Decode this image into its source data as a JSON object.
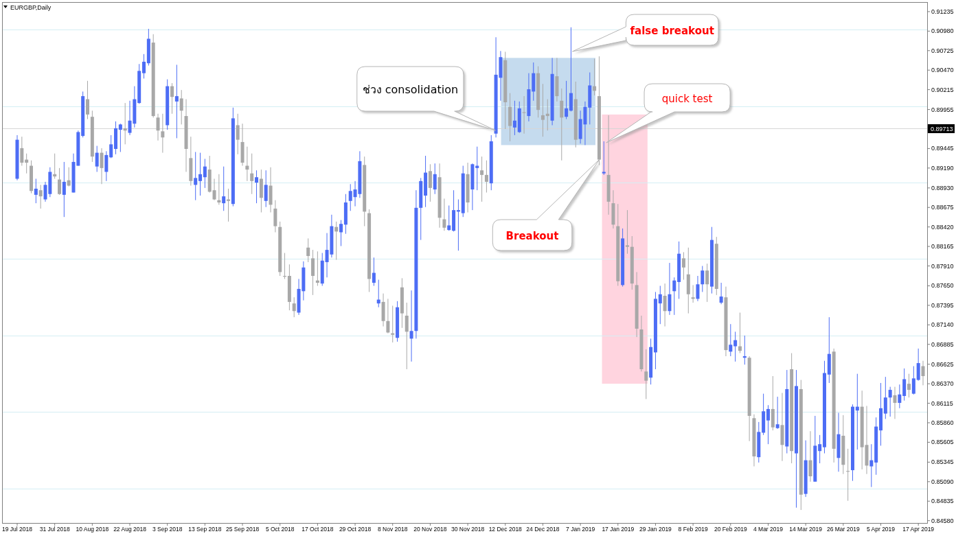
{
  "chart_data": {
    "type": "candlestick",
    "title": "EURGBP,Daily",
    "categories": [
      "19 Jul 2018",
      null,
      null,
      null,
      null,
      null,
      null,
      null,
      "31 Jul 2018",
      null,
      null,
      null,
      null,
      null,
      null,
      null,
      "10 Aug 2018",
      null,
      null,
      null,
      null,
      null,
      null,
      null,
      "22 Aug 2018",
      null,
      null,
      null,
      null,
      null,
      null,
      null,
      "3 Sep 2018",
      null,
      null,
      null,
      null,
      null,
      null,
      null,
      "13 Sep 2018",
      null,
      null,
      null,
      null,
      null,
      null,
      null,
      "25 Sep 2018",
      null,
      null,
      null,
      null,
      null,
      null,
      null,
      "5 Oct 2018",
      null,
      null,
      null,
      null,
      null,
      null,
      null,
      "17 Oct 2018",
      null,
      null,
      null,
      null,
      null,
      null,
      null,
      "29 Oct 2018",
      null,
      null,
      null,
      null,
      null,
      null,
      null,
      "8 Nov 2018",
      null,
      null,
      null,
      null,
      null,
      null,
      null,
      "20 Nov 2018",
      null,
      null,
      null,
      null,
      null,
      null,
      null,
      "30 Nov 2018",
      null,
      null,
      null,
      null,
      null,
      null,
      null,
      "12 Dec 2018",
      null,
      null,
      null,
      null,
      null,
      null,
      null,
      "24 Dec 2018",
      null,
      null,
      null,
      null,
      null,
      null,
      null,
      "7 Jan 2019",
      null,
      null,
      null,
      null,
      null,
      null,
      null,
      "17 Jan 2019",
      null,
      null,
      null,
      null,
      null,
      null,
      null,
      "29 Jan 2019",
      null,
      null,
      null,
      null,
      null,
      null,
      null,
      "8 Feb 2019",
      null,
      null,
      null,
      null,
      null,
      null,
      null,
      "20 Feb 2019",
      null,
      null,
      null,
      null,
      null,
      null,
      null,
      "4 Mar 2019",
      null,
      null,
      null,
      null,
      null,
      null,
      null,
      "14 Mar 2019",
      null,
      null,
      null,
      null,
      null,
      null,
      null,
      "26 Mar 2019",
      null,
      null,
      null,
      null,
      null,
      null,
      null,
      "5 Apr 2019",
      null,
      null,
      null,
      null,
      null,
      null,
      null,
      "17 Apr 2019",
      null
    ],
    "ohlc": [
      [
        0.8905,
        0.8962,
        0.8903,
        0.8956
      ],
      [
        0.8945,
        0.896,
        0.8922,
        0.8926
      ],
      [
        0.893,
        0.8938,
        0.8912,
        0.8926
      ],
      [
        0.8922,
        0.8929,
        0.8886,
        0.8889
      ],
      [
        0.8884,
        0.8905,
        0.8873,
        0.8892
      ],
      [
        0.889,
        0.8897,
        0.8866,
        0.8882
      ],
      [
        0.8878,
        0.8901,
        0.8875,
        0.8897
      ],
      [
        0.8885,
        0.892,
        0.8881,
        0.8914
      ],
      [
        0.8911,
        0.8938,
        0.8905,
        0.8908
      ],
      [
        0.8904,
        0.8919,
        0.8884,
        0.8885
      ],
      [
        0.8884,
        0.8927,
        0.8855,
        0.8901
      ],
      [
        0.8903,
        0.892,
        0.8895,
        0.8896
      ],
      [
        0.8887,
        0.8938,
        0.8887,
        0.8927
      ],
      [
        0.8922,
        0.8968,
        0.8922,
        0.8966
      ],
      [
        0.8961,
        0.9019,
        0.8959,
        0.9013
      ],
      [
        0.9009,
        0.9033,
        0.8983,
        0.8989
      ],
      [
        0.8986,
        0.8994,
        0.8927,
        0.8934
      ],
      [
        0.8921,
        0.8948,
        0.8914,
        0.8939
      ],
      [
        0.8939,
        0.8945,
        0.8898,
        0.8919
      ],
      [
        0.8914,
        0.8941,
        0.8902,
        0.8936
      ],
      [
        0.8933,
        0.8962,
        0.8932,
        0.895
      ],
      [
        0.8944,
        0.898,
        0.8937,
        0.8971
      ],
      [
        0.8969,
        0.8977,
        0.894,
        0.8976
      ],
      [
        0.8971,
        0.9004,
        0.895,
        0.8968
      ],
      [
        0.8965,
        0.9007,
        0.8962,
        0.8981
      ],
      [
        0.8977,
        0.9026,
        0.8972,
        0.9009
      ],
      [
        0.9004,
        0.9055,
        0.9003,
        0.9046
      ],
      [
        0.9043,
        0.9068,
        0.9036,
        0.9058
      ],
      [
        0.9056,
        0.9101,
        0.9053,
        0.9088
      ],
      [
        0.9083,
        0.9094,
        0.8985,
        0.8987
      ],
      [
        0.8985,
        0.899,
        0.8955,
        0.8968
      ],
      [
        0.8967,
        0.899,
        0.8939,
        0.8959
      ],
      [
        0.8975,
        0.9035,
        0.8969,
        0.9026
      ],
      [
        0.9026,
        0.903,
        0.899,
        0.9012
      ],
      [
        0.9006,
        0.9054,
        0.8958,
        0.9013
      ],
      [
        0.901,
        0.9021,
        0.8976,
        0.8994
      ],
      [
        0.8987,
        0.9009,
        0.8914,
        0.8944
      ],
      [
        0.8932,
        0.896,
        0.8896,
        0.8902
      ],
      [
        0.8897,
        0.894,
        0.8877,
        0.8906
      ],
      [
        0.8902,
        0.8939,
        0.8883,
        0.8911
      ],
      [
        0.8907,
        0.8931,
        0.8893,
        0.8921
      ],
      [
        0.8917,
        0.8935,
        0.8887,
        0.8888
      ],
      [
        0.889,
        0.8905,
        0.8877,
        0.8878
      ],
      [
        0.8877,
        0.8911,
        0.8871,
        0.8874
      ],
      [
        0.8873,
        0.8921,
        0.8863,
        0.8882
      ],
      [
        0.8878,
        0.8892,
        0.8849,
        0.8876
      ],
      [
        0.8872,
        0.8998,
        0.8869,
        0.8984
      ],
      [
        0.8975,
        0.899,
        0.8937,
        0.8956
      ],
      [
        0.8953,
        0.8977,
        0.8922,
        0.8926
      ],
      [
        0.8922,
        0.8947,
        0.8902,
        0.8917
      ],
      [
        0.8912,
        0.8938,
        0.8885,
        0.8902
      ],
      [
        0.89,
        0.8916,
        0.8873,
        0.8907
      ],
      [
        0.8905,
        0.8917,
        0.8861,
        0.888
      ],
      [
        0.8876,
        0.8916,
        0.8868,
        0.8897
      ],
      [
        0.8896,
        0.892,
        0.8861,
        0.8871
      ],
      [
        0.8866,
        0.8877,
        0.8835,
        0.8843
      ],
      [
        0.8842,
        0.8849,
        0.8778,
        0.8783
      ],
      [
        0.8778,
        0.8808,
        0.8774,
        0.8777
      ],
      [
        0.8778,
        0.8793,
        0.8733,
        0.8744
      ],
      [
        0.8742,
        0.875,
        0.8724,
        0.8732
      ],
      [
        0.873,
        0.8774,
        0.8727,
        0.8761
      ],
      [
        0.8758,
        0.8797,
        0.8746,
        0.8789
      ],
      [
        0.8815,
        0.8827,
        0.8796,
        0.8804
      ],
      [
        0.8801,
        0.8812,
        0.8753,
        0.8778
      ],
      [
        0.8772,
        0.881,
        0.8765,
        0.8769
      ],
      [
        0.8768,
        0.8808,
        0.8765,
        0.8798
      ],
      [
        0.8796,
        0.8834,
        0.8776,
        0.8812
      ],
      [
        0.8806,
        0.8858,
        0.8802,
        0.8843
      ],
      [
        0.8842,
        0.8849,
        0.8799,
        0.8836
      ],
      [
        0.8835,
        0.8851,
        0.8817,
        0.8846
      ],
      [
        0.8845,
        0.8885,
        0.8833,
        0.8874
      ],
      [
        0.8876,
        0.8898,
        0.8863,
        0.8889
      ],
      [
        0.8881,
        0.8902,
        0.8869,
        0.8891
      ],
      [
        0.8885,
        0.8941,
        0.888,
        0.8928
      ],
      [
        0.8923,
        0.8934,
        0.8843,
        0.8862
      ],
      [
        0.886,
        0.8865,
        0.8757,
        0.8774
      ],
      [
        0.8769,
        0.8802,
        0.8765,
        0.8782
      ],
      [
        0.8742,
        0.8773,
        0.8737,
        0.8747
      ],
      [
        0.8744,
        0.8755,
        0.8712,
        0.8719
      ],
      [
        0.8719,
        0.8748,
        0.8703,
        0.8704
      ],
      [
        0.8703,
        0.8739,
        0.8691,
        0.8701
      ],
      [
        0.8697,
        0.8745,
        0.8692,
        0.8737
      ],
      [
        0.8763,
        0.8775,
        0.871,
        0.8729
      ],
      [
        0.8726,
        0.8743,
        0.8656,
        0.8705
      ],
      [
        0.8696,
        0.8759,
        0.8666,
        0.8706
      ],
      [
        0.8706,
        0.889,
        0.8696,
        0.8867
      ],
      [
        0.8867,
        0.8906,
        0.8825,
        0.8902
      ],
      [
        0.8883,
        0.8935,
        0.8868,
        0.8913
      ],
      [
        0.8915,
        0.8924,
        0.8875,
        0.8893
      ],
      [
        0.8891,
        0.8925,
        0.8885,
        0.8911
      ],
      [
        0.8907,
        0.8925,
        0.8841,
        0.8854
      ],
      [
        0.8852,
        0.8879,
        0.8837,
        0.8841
      ],
      [
        0.8838,
        0.887,
        0.8837,
        0.8844
      ],
      [
        0.8837,
        0.889,
        0.8836,
        0.8864
      ],
      [
        0.8862,
        0.8878,
        0.8811,
        0.8864
      ],
      [
        0.886,
        0.8922,
        0.8855,
        0.8912
      ],
      [
        0.8911,
        0.8926,
        0.8861,
        0.8874
      ],
      [
        0.8891,
        0.8925,
        0.8864,
        0.8924
      ],
      [
        0.8919,
        0.8947,
        0.889,
        0.8922
      ],
      [
        0.8916,
        0.8934,
        0.8875,
        0.891
      ],
      [
        0.891,
        0.8929,
        0.8887,
        0.8901
      ],
      [
        0.8899,
        0.8962,
        0.889,
        0.8954
      ],
      [
        0.8964,
        0.909,
        0.8959,
        0.9041
      ],
      [
        0.9037,
        0.9072,
        0.9007,
        0.9064
      ],
      [
        0.906,
        0.9071,
        0.897,
        0.9005
      ],
      [
        0.8999,
        0.9017,
        0.8954,
        0.8974
      ],
      [
        0.8972,
        0.9007,
        0.8962,
        0.8981
      ],
      [
        0.8966,
        0.9006,
        0.8965,
        0.8997
      ],
      [
        0.8992,
        0.9013,
        0.8964,
        0.8991
      ],
      [
        0.8987,
        0.9043,
        0.898,
        0.9022
      ],
      [
        0.9019,
        0.9057,
        0.9007,
        0.9043
      ],
      [
        0.9043,
        0.9052,
        0.8985,
        0.8995
      ],
      [
        0.8988,
        0.9029,
        0.896,
        0.8982
      ],
      [
        0.899,
        0.9009,
        0.8968,
        0.8987
      ],
      [
        0.8981,
        0.9063,
        0.8975,
        0.9042
      ],
      [
        0.9039,
        0.9063,
        0.9006,
        0.9013
      ],
      [
        0.9007,
        0.9023,
        0.8929,
        0.8985
      ],
      [
        0.8986,
        0.9033,
        0.8983,
        0.8997
      ],
      [
        0.8994,
        0.9103,
        0.8993,
        0.9017
      ],
      [
        0.9009,
        0.9032,
        0.8946,
        0.8956
      ],
      [
        0.8957,
        0.8994,
        0.8951,
        0.8983
      ],
      [
        0.8976,
        0.9006,
        0.8949,
        0.8999
      ],
      [
        0.8998,
        0.9044,
        0.8976,
        0.9027
      ],
      [
        0.9026,
        0.9062,
        0.9014,
        0.902
      ],
      [
        0.9013,
        0.9065,
        0.8923,
        0.893
      ],
      [
        0.8912,
        0.8954,
        0.891,
        0.8914
      ],
      [
        0.891,
        0.8988,
        0.8858,
        0.8875
      ],
      [
        0.8873,
        0.889,
        0.884,
        0.8845
      ],
      [
        0.8843,
        0.8872,
        0.8765,
        0.8771
      ],
      [
        0.8766,
        0.884,
        0.8764,
        0.8827
      ],
      [
        0.8818,
        0.8864,
        0.8807,
        0.8816
      ],
      [
        0.8816,
        0.883,
        0.876,
        0.8768
      ],
      [
        0.8766,
        0.8783,
        0.8698,
        0.8709
      ],
      [
        0.8708,
        0.8726,
        0.8653,
        0.8656
      ],
      [
        0.8653,
        0.8682,
        0.8617,
        0.8641
      ],
      [
        0.8645,
        0.8696,
        0.8636,
        0.8685
      ],
      [
        0.8678,
        0.8757,
        0.8656,
        0.8748
      ],
      [
        0.8742,
        0.8765,
        0.8715,
        0.8754
      ],
      [
        0.8752,
        0.8768,
        0.8712,
        0.8732
      ],
      [
        0.8732,
        0.8795,
        0.8727,
        0.8754
      ],
      [
        0.8758,
        0.8776,
        0.8727,
        0.8772
      ],
      [
        0.877,
        0.8823,
        0.8748,
        0.8807
      ],
      [
        0.8801,
        0.8809,
        0.8773,
        0.8789
      ],
      [
        0.878,
        0.8815,
        0.8729,
        0.8754
      ],
      [
        0.875,
        0.8766,
        0.8743,
        0.8748
      ],
      [
        0.8748,
        0.8778,
        0.8745,
        0.8767
      ],
      [
        0.8767,
        0.8791,
        0.8757,
        0.8785
      ],
      [
        0.8785,
        0.8794,
        0.8744,
        0.8767
      ],
      [
        0.8764,
        0.8842,
        0.8755,
        0.8825
      ],
      [
        0.882,
        0.8829,
        0.8753,
        0.8761
      ],
      [
        0.8743,
        0.8769,
        0.8741,
        0.8751
      ],
      [
        0.875,
        0.8764,
        0.8673,
        0.8681
      ],
      [
        0.8679,
        0.8715,
        0.8673,
        0.8688
      ],
      [
        0.8686,
        0.8705,
        0.8666,
        0.8694
      ],
      [
        0.8686,
        0.873,
        0.8677,
        0.868
      ],
      [
        0.8671,
        0.87,
        0.8662,
        0.8673
      ],
      [
        0.8671,
        0.8673,
        0.8562,
        0.8595
      ],
      [
        0.8592,
        0.8597,
        0.8529,
        0.8542
      ],
      [
        0.8541,
        0.8587,
        0.8534,
        0.8574
      ],
      [
        0.8573,
        0.8624,
        0.857,
        0.8601
      ],
      [
        0.8589,
        0.8609,
        0.8558,
        0.8604
      ],
      [
        0.8604,
        0.8647,
        0.8576,
        0.858
      ],
      [
        0.8579,
        0.862,
        0.8578,
        0.8584
      ],
      [
        0.8583,
        0.8625,
        0.8536,
        0.8557
      ],
      [
        0.8555,
        0.8655,
        0.8546,
        0.863
      ],
      [
        0.8656,
        0.8677,
        0.8533,
        0.8549
      ],
      [
        0.8546,
        0.8655,
        0.8475,
        0.8634
      ],
      [
        0.863,
        0.8642,
        0.8472,
        0.8492
      ],
      [
        0.8493,
        0.8563,
        0.8489,
        0.8537
      ],
      [
        0.8537,
        0.8575,
        0.8509,
        0.8516
      ],
      [
        0.8509,
        0.8595,
        0.8509,
        0.8556
      ],
      [
        0.8549,
        0.857,
        0.8533,
        0.8558
      ],
      [
        0.8554,
        0.8667,
        0.8546,
        0.8651
      ],
      [
        0.8649,
        0.8724,
        0.8638,
        0.8676
      ],
      [
        0.8679,
        0.8683,
        0.8534,
        0.8552
      ],
      [
        0.854,
        0.8599,
        0.8522,
        0.8571
      ],
      [
        0.8569,
        0.8596,
        0.8519,
        0.8531
      ],
      [
        0.8523,
        0.8552,
        0.8484,
        0.8522
      ],
      [
        0.8524,
        0.861,
        0.851,
        0.8607
      ],
      [
        0.8602,
        0.865,
        0.8551,
        0.8607
      ],
      [
        0.8607,
        0.8628,
        0.8525,
        0.8554
      ],
      [
        0.8557,
        0.8608,
        0.8519,
        0.853
      ],
      [
        0.8529,
        0.8558,
        0.8502,
        0.8537
      ],
      [
        0.8534,
        0.8593,
        0.8518,
        0.8581
      ],
      [
        0.8576,
        0.8638,
        0.8556,
        0.8605
      ],
      [
        0.8598,
        0.8646,
        0.8591,
        0.8619
      ],
      [
        0.8619,
        0.8633,
        0.8594,
        0.8629
      ],
      [
        0.8622,
        0.8633,
        0.8591,
        0.8612
      ],
      [
        0.8612,
        0.8636,
        0.8605,
        0.8623
      ],
      [
        0.8621,
        0.8657,
        0.8615,
        0.8643
      ],
      [
        0.8637,
        0.865,
        0.8619,
        0.8629
      ],
      [
        0.8624,
        0.866,
        0.8623,
        0.8644
      ],
      [
        0.8642,
        0.8683,
        0.8641,
        0.8664
      ],
      [
        0.866,
        0.8667,
        0.8635,
        0.8647
      ]
    ],
    "colors": [
      "#4d6df5",
      "#a8a8a8",
      "#a8a8a8",
      "#a8a8a8",
      "#4d6df5",
      "#a8a8a8",
      "#4d6df5",
      "#4d6df5",
      "#a8a8a8",
      "#a8a8a8",
      "#4d6df5",
      "#a8a8a8",
      "#4d6df5",
      "#4d6df5",
      "#4d6df5",
      "#a8a8a8",
      "#a8a8a8",
      "#4d6df5",
      "#a8a8a8",
      "#4d6df5",
      "#4d6df5",
      "#4d6df5",
      "#4d6df5",
      "#a8a8a8",
      "#4d6df5",
      "#4d6df5",
      "#4d6df5",
      "#4d6df5",
      "#4d6df5",
      "#a8a8a8",
      "#a8a8a8",
      "#a8a8a8",
      "#4d6df5",
      "#a8a8a8",
      "#4d6df5",
      "#a8a8a8",
      "#a8a8a8",
      "#a8a8a8",
      "#4d6df5",
      "#4d6df5",
      "#4d6df5",
      "#a8a8a8",
      "#a8a8a8",
      "#a8a8a8",
      "#4d6df5",
      "#a8a8a8",
      "#4d6df5",
      "#a8a8a8",
      "#a8a8a8",
      "#a8a8a8",
      "#a8a8a8",
      "#4d6df5",
      "#a8a8a8",
      "#4d6df5",
      "#a8a8a8",
      "#a8a8a8",
      "#a8a8a8",
      "#a8a8a8",
      "#a8a8a8",
      "#a8a8a8",
      "#4d6df5",
      "#4d6df5",
      "#a8a8a8",
      "#a8a8a8",
      "#a8a8a8",
      "#4d6df5",
      "#4d6df5",
      "#4d6df5",
      "#a8a8a8",
      "#4d6df5",
      "#4d6df5",
      "#4d6df5",
      "#4d6df5",
      "#4d6df5",
      "#a8a8a8",
      "#a8a8a8",
      "#4d6df5",
      "#4d6df5",
      "#a8a8a8",
      "#a8a8a8",
      "#a8a8a8",
      "#4d6df5",
      "#a8a8a8",
      "#a8a8a8",
      "#4d6df5",
      "#4d6df5",
      "#4d6df5",
      "#4d6df5",
      "#a8a8a8",
      "#4d6df5",
      "#a8a8a8",
      "#a8a8a8",
      "#4d6df5",
      "#4d6df5",
      "#4d6df5",
      "#4d6df5",
      "#a8a8a8",
      "#4d6df5",
      "#4d6df5",
      "#a8a8a8",
      "#a8a8a8",
      "#4d6df5",
      "#4d6df5",
      "#4d6df5",
      "#a8a8a8",
      "#a8a8a8",
      "#4d6df5",
      "#4d6df5",
      "#a8a8a8",
      "#4d6df5",
      "#4d6df5",
      "#a8a8a8",
      "#a8a8a8",
      "#a8a8a8",
      "#4d6df5",
      "#a8a8a8",
      "#a8a8a8",
      "#4d6df5",
      "#4d6df5",
      "#a8a8a8",
      "#4d6df5",
      "#4d6df5",
      "#4d6df5",
      "#a8a8a8",
      "#a8a8a8",
      "#4d6df5",
      "#a8a8a8",
      "#a8a8a8",
      "#a8a8a8",
      "#4d6df5",
      "#a8a8a8",
      "#a8a8a8",
      "#a8a8a8",
      "#a8a8a8",
      "#a8a8a8",
      "#4d6df5",
      "#4d6df5",
      "#4d6df5",
      "#a8a8a8",
      "#4d6df5",
      "#4d6df5",
      "#4d6df5",
      "#a8a8a8",
      "#a8a8a8",
      "#a8a8a8",
      "#4d6df5",
      "#4d6df5",
      "#a8a8a8",
      "#4d6df5",
      "#a8a8a8",
      "#4d6df5",
      "#a8a8a8",
      "#4d6df5",
      "#4d6df5",
      "#a8a8a8",
      "#4d6df5",
      "#a8a8a8",
      "#a8a8a8",
      "#4d6df5",
      "#4d6df5",
      "#4d6df5",
      "#a8a8a8",
      "#4d6df5",
      "#a8a8a8",
      "#4d6df5",
      "#a8a8a8",
      "#4d6df5",
      "#a8a8a8",
      "#4d6df5",
      "#a8a8a8",
      "#4d6df5",
      "#4d6df5",
      "#4d6df5",
      "#4d6df5",
      "#a8a8a8",
      "#4d6df5",
      "#a8a8a8",
      "#a8a8a8",
      "#4d6df5",
      "#4d6df5",
      "#a8a8a8",
      "#a8a8a8",
      "#4d6df5",
      "#4d6df5",
      "#4d6df5",
      "#4d6df5",
      "#4d6df5",
      "#a8a8a8",
      "#4d6df5",
      "#4d6df5",
      "#a8a8a8",
      "#4d6df5",
      "#4d6df5",
      "#a8a8a8"
    ],
    "ylim": [
      0.8455,
      0.9136
    ],
    "yticks": [
      {
        "value": 0.91235,
        "label": "0.91235"
      },
      {
        "value": 0.9098,
        "label": "0.90980"
      },
      {
        "value": 0.90725,
        "label": "0.90725"
      },
      {
        "value": 0.9047,
        "label": "0.90470"
      },
      {
        "value": 0.90215,
        "label": "0.90215"
      },
      {
        "value": 0.89955,
        "label": "0.89955"
      },
      {
        "value": 0.89445,
        "label": "0.89445"
      },
      {
        "value": 0.8919,
        "label": "0.89190"
      },
      {
        "value": 0.8893,
        "label": "0.88930"
      },
      {
        "value": 0.88675,
        "label": "0.88675"
      },
      {
        "value": 0.8842,
        "label": "0.88420"
      },
      {
        "value": 0.88165,
        "label": "0.88165"
      },
      {
        "value": 0.8791,
        "label": "0.87910"
      },
      {
        "value": 0.8765,
        "label": "0.87650"
      },
      {
        "value": 0.87395,
        "label": "0.87395"
      },
      {
        "value": 0.8714,
        "label": "0.87140"
      },
      {
        "value": 0.86885,
        "label": "0.86885"
      },
      {
        "value": 0.86625,
        "label": "0.86625"
      },
      {
        "value": 0.8637,
        "label": "0.86370"
      },
      {
        "value": 0.86115,
        "label": "0.86115"
      },
      {
        "value": 0.8586,
        "label": "0.85860"
      },
      {
        "value": 0.85605,
        "label": "0.85605"
      },
      {
        "value": 0.85345,
        "label": "0.85345"
      },
      {
        "value": 0.8509,
        "label": "0.85090"
      },
      {
        "value": 0.84835,
        "label": "0.84835"
      },
      {
        "value": 0.8458,
        "label": "0.84580"
      }
    ],
    "ref_lines": [
      {
        "axis": "y",
        "value": 0.91,
        "color": "#d4eef4"
      },
      {
        "axis": "y",
        "value": 0.9,
        "color": "#d4eef4"
      },
      {
        "axis": "y",
        "value": 0.89,
        "color": "#d4eef4"
      },
      {
        "axis": "y",
        "value": 0.88,
        "color": "#d4eef4"
      },
      {
        "axis": "y",
        "value": 0.87,
        "color": "#d4eef4"
      },
      {
        "axis": "y",
        "value": 0.86,
        "color": "#d4eef4"
      },
      {
        "axis": "y",
        "value": 0.85,
        "color": "#d4eef4"
      },
      {
        "axis": "y",
        "value": 0.89713,
        "label": "0.89713",
        "color": "#d6d6d6"
      }
    ],
    "bands": [
      {
        "axis": "y",
        "from": 0.8949,
        "to": 0.9063,
        "color": "#c5dbee"
      },
      {
        "axis": "y",
        "from": 0.8637,
        "to": 0.8989,
        "color": "#ffd4df"
      }
    ],
    "annotations": [
      "ช่วง consolidation",
      "false breakout",
      "quick test",
      "Breakout"
    ]
  }
}
